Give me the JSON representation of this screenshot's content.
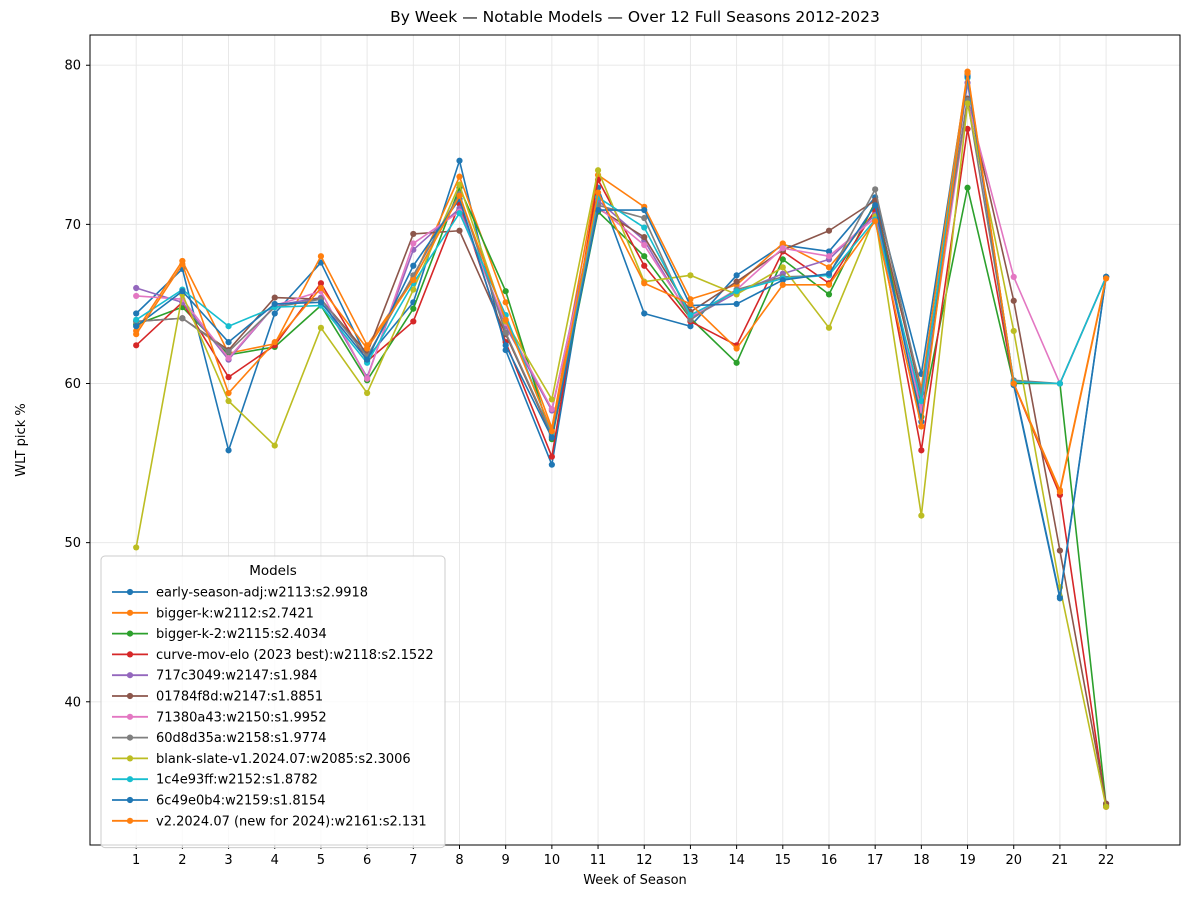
{
  "title": "By Week — Notable Models — Over 12 Full Seasons 2012-2023",
  "chart_data": {
    "type": "line",
    "title": "By Week — Notable Models — Over 12 Full Seasons 2012-2023",
    "xlabel": "Week of Season",
    "ylabel": "WLT pick %",
    "legend_title": "Models",
    "legend_position": "lower left",
    "grid": true,
    "x_ticks": [
      1,
      2,
      3,
      4,
      5,
      6,
      7,
      8,
      9,
      10,
      11,
      12,
      13,
      14,
      15,
      16,
      17,
      18,
      19,
      20,
      21,
      22
    ],
    "y_ticks": [
      40,
      50,
      60,
      70,
      80
    ],
    "xlim": [
      0.0,
      23.6
    ],
    "ylim": [
      31.0,
      81.9
    ],
    "x": [
      1,
      2,
      3,
      4,
      5,
      6,
      7,
      8,
      9,
      10,
      11,
      12,
      13,
      14,
      15,
      16,
      17,
      18,
      19,
      20,
      21,
      22
    ],
    "series": [
      {
        "name": "early-season-adj:w2113:s2.9918",
        "color": "#1f77b4",
        "values": [
          64.4,
          67.2,
          55.8,
          64.4,
          67.6,
          61.6,
          65.1,
          74.0,
          62.1,
          54.9,
          72.3,
          64.4,
          63.6,
          66.8,
          68.7,
          68.3,
          71.7,
          60.6,
          79.4,
          60.0,
          46.6,
          66.7
        ]
      },
      {
        "name": "bigger-k:w2112:s2.7421",
        "color": "#ff7f0e",
        "values": [
          63.3,
          67.7,
          61.9,
          62.5,
          68.0,
          62.4,
          66.6,
          73.0,
          65.1,
          57.2,
          73.1,
          71.1,
          65.3,
          66.2,
          68.8,
          67.3,
          70.8,
          59.7,
          79.6,
          60.0,
          53.3,
          66.7
        ]
      },
      {
        "name": "bigger-k-2:w2115:s2.4034",
        "color": "#2ca02c",
        "values": [
          63.7,
          64.8,
          61.8,
          62.3,
          64.9,
          60.2,
          64.7,
          72.3,
          65.8,
          56.5,
          70.8,
          68.0,
          64.1,
          61.3,
          67.8,
          65.6,
          71.4,
          57.9,
          72.3,
          60.0,
          60.0,
          33.5
        ]
      },
      {
        "name": "curve-mov-elo (2023 best):w2118:s2.1522",
        "color": "#d62728",
        "values": [
          62.4,
          65.1,
          60.4,
          62.4,
          66.3,
          61.4,
          63.9,
          71.3,
          62.6,
          55.4,
          72.8,
          67.4,
          63.9,
          62.4,
          68.3,
          66.3,
          70.9,
          55.8,
          76.0,
          60.0,
          53.0,
          33.4
        ]
      },
      {
        "name": "717c3049:w2147:s1.984",
        "color": "#9467bd",
        "values": [
          66.0,
          65.1,
          61.5,
          64.9,
          65.4,
          60.4,
          68.4,
          71.0,
          63.6,
          58.3,
          71.5,
          69.0,
          64.1,
          65.7,
          66.9,
          67.8,
          70.6,
          58.6,
          78.9,
          60.1,
          60.0,
          66.7
        ]
      },
      {
        "name": "01784f8d:w2147:s1.8851",
        "color": "#8c564b",
        "values": [
          63.9,
          64.1,
          62.1,
          65.4,
          65.3,
          61.9,
          69.4,
          69.6,
          63.1,
          56.7,
          71.0,
          69.2,
          64.5,
          66.4,
          68.4,
          69.6,
          71.5,
          59.2,
          77.9,
          65.2,
          49.5,
          33.6
        ]
      },
      {
        "name": "71380a43:w2150:s1.9952",
        "color": "#e377c2",
        "values": [
          65.5,
          65.3,
          61.6,
          64.9,
          65.8,
          60.3,
          68.8,
          70.8,
          63.8,
          58.4,
          71.1,
          68.7,
          64.2,
          65.9,
          68.5,
          68.0,
          70.4,
          58.3,
          77.7,
          66.7,
          60.0,
          66.7
        ]
      },
      {
        "name": "60d8d35a:w2158:s1.9774",
        "color": "#7f7f7f",
        "values": [
          63.9,
          64.1,
          62.0,
          64.8,
          65.3,
          61.7,
          66.8,
          71.9,
          63.2,
          56.8,
          71.2,
          70.4,
          64.0,
          65.9,
          66.7,
          66.8,
          72.2,
          59.4,
          77.8,
          60.2,
          60.0,
          66.7
        ]
      },
      {
        "name": "blank-slate-v1.2024.07:w2085:s2.3006",
        "color": "#bcbd22",
        "values": [
          49.7,
          65.6,
          58.9,
          56.1,
          63.5,
          59.4,
          65.9,
          72.5,
          63.9,
          59.0,
          73.4,
          66.4,
          66.8,
          65.6,
          67.3,
          63.5,
          70.5,
          51.7,
          77.6,
          63.3,
          47.2,
          33.4
        ]
      },
      {
        "name": "1c4e93ff:w2152:s1.8782",
        "color": "#17becf",
        "values": [
          64.0,
          65.9,
          63.6,
          64.8,
          64.9,
          61.3,
          66.3,
          70.7,
          64.3,
          56.9,
          71.7,
          69.8,
          64.3,
          65.8,
          66.6,
          66.8,
          70.3,
          58.9,
          79.2,
          60.1,
          60.0,
          66.7
        ]
      },
      {
        "name": "6c49e0b4:w2159:s1.8154",
        "color": "#1f77b4",
        "values": [
          63.6,
          65.8,
          62.6,
          65.0,
          65.1,
          61.5,
          67.4,
          71.6,
          62.4,
          56.6,
          70.9,
          70.9,
          64.9,
          65.0,
          66.5,
          66.9,
          71.2,
          57.6,
          79.3,
          59.9,
          46.5,
          66.7
        ]
      },
      {
        "name": "v2.2024.07 (new for 2024):w2161:s2.131",
        "color": "#ff7f0e",
        "values": [
          63.1,
          67.5,
          59.4,
          62.6,
          66.0,
          62.2,
          66.5,
          71.8,
          64.0,
          57.0,
          72.0,
          66.3,
          65.0,
          62.2,
          66.2,
          66.2,
          70.2,
          57.3,
          79.5,
          60.0,
          53.2,
          66.6
        ]
      }
    ]
  },
  "style": {
    "grid_color": "#e6e6e6",
    "spine_color": "#000000",
    "legend_border_color": "#cccccc",
    "legend_bg": "rgba(255,255,255,0.8)"
  }
}
